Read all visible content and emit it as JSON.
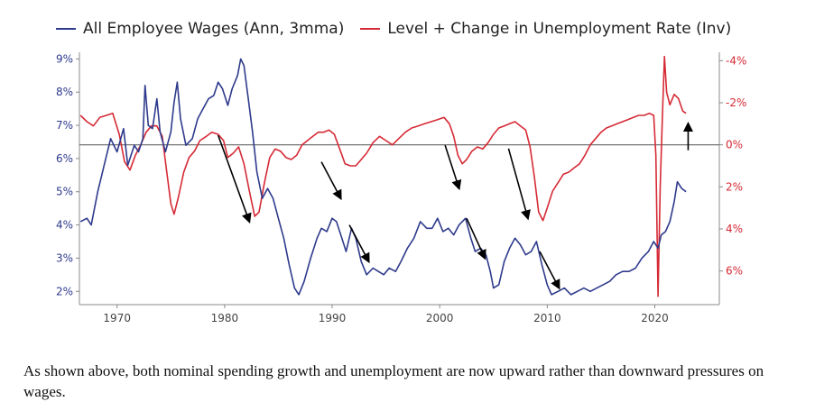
{
  "colors": {
    "wages": "#2e3a8c",
    "unemployment": "#d62a35",
    "axis": "#888888",
    "zero_line": "#666666",
    "arrow": "#000000"
  },
  "caption": "As shown above, both nominal spending growth and unemployment are now upward rather than downward pressures on wages.",
  "chart_data": {
    "type": "line",
    "x_ticks": [
      "1970",
      "1980",
      "1990",
      "2000",
      "2010",
      "2020"
    ],
    "xlim": [
      1966.5,
      2026
    ],
    "y_left": {
      "ticks": [
        "2%",
        "3%",
        "4%",
        "5%",
        "6%",
        "7%",
        "8%",
        "9%"
      ],
      "lim": [
        1.6,
        9.2
      ]
    },
    "y_right": {
      "ticks": [
        "-4%",
        "-2%",
        "0%",
        "2%",
        "4%",
        "6%"
      ],
      "values": [
        -4,
        -2,
        0,
        2,
        4,
        6
      ],
      "lim": [
        7.6,
        -4.4
      ],
      "inverted": true
    },
    "zero_line": 0,
    "series": [
      {
        "name": "All Employee Wages (Ann, 3mma)",
        "axis": "left",
        "points": [
          [
            1966.6,
            4.1
          ],
          [
            1967.2,
            4.2
          ],
          [
            1967.6,
            4.0
          ],
          [
            1968.2,
            5.0
          ],
          [
            1968.8,
            5.8
          ],
          [
            1969.4,
            6.6
          ],
          [
            1970.0,
            6.2
          ],
          [
            1970.6,
            6.9
          ],
          [
            1971.0,
            5.8
          ],
          [
            1971.6,
            6.4
          ],
          [
            1972.0,
            6.2
          ],
          [
            1972.4,
            6.6
          ],
          [
            1972.6,
            8.2
          ],
          [
            1972.9,
            7.0
          ],
          [
            1973.3,
            6.9
          ],
          [
            1973.7,
            7.8
          ],
          [
            1974.0,
            6.8
          ],
          [
            1974.5,
            6.2
          ],
          [
            1975.0,
            6.8
          ],
          [
            1975.3,
            7.7
          ],
          [
            1975.6,
            8.3
          ],
          [
            1975.9,
            7.2
          ],
          [
            1976.4,
            6.4
          ],
          [
            1977.0,
            6.6
          ],
          [
            1977.5,
            7.2
          ],
          [
            1978.0,
            7.5
          ],
          [
            1978.5,
            7.8
          ],
          [
            1979.0,
            7.9
          ],
          [
            1979.4,
            8.3
          ],
          [
            1979.8,
            8.1
          ],
          [
            1980.3,
            7.6
          ],
          [
            1980.7,
            8.1
          ],
          [
            1981.2,
            8.5
          ],
          [
            1981.5,
            9.0
          ],
          [
            1981.8,
            8.8
          ],
          [
            1982.2,
            7.8
          ],
          [
            1982.6,
            6.8
          ],
          [
            1983.0,
            5.6
          ],
          [
            1983.5,
            4.8
          ],
          [
            1984.0,
            5.1
          ],
          [
            1984.5,
            4.8
          ],
          [
            1985.0,
            4.2
          ],
          [
            1985.5,
            3.6
          ],
          [
            1986.0,
            2.8
          ],
          [
            1986.5,
            2.1
          ],
          [
            1986.9,
            1.9
          ],
          [
            1987.4,
            2.3
          ],
          [
            1988.0,
            3.0
          ],
          [
            1988.6,
            3.6
          ],
          [
            1989.0,
            3.9
          ],
          [
            1989.5,
            3.8
          ],
          [
            1990.0,
            4.2
          ],
          [
            1990.4,
            4.1
          ],
          [
            1990.8,
            3.7
          ],
          [
            1991.3,
            3.2
          ],
          [
            1991.8,
            3.9
          ],
          [
            1992.2,
            3.6
          ],
          [
            1992.7,
            2.9
          ],
          [
            1993.2,
            2.5
          ],
          [
            1993.8,
            2.7
          ],
          [
            1994.3,
            2.6
          ],
          [
            1994.8,
            2.5
          ],
          [
            1995.3,
            2.7
          ],
          [
            1995.9,
            2.6
          ],
          [
            1996.4,
            2.9
          ],
          [
            1997.0,
            3.3
          ],
          [
            1997.6,
            3.6
          ],
          [
            1998.2,
            4.1
          ],
          [
            1998.8,
            3.9
          ],
          [
            1999.3,
            3.9
          ],
          [
            1999.8,
            4.2
          ],
          [
            2000.3,
            3.8
          ],
          [
            2000.8,
            3.9
          ],
          [
            2001.3,
            3.7
          ],
          [
            2001.8,
            4.0
          ],
          [
            2002.4,
            4.2
          ],
          [
            2002.9,
            3.6
          ],
          [
            2003.3,
            3.2
          ],
          [
            2003.8,
            3.3
          ],
          [
            2004.3,
            3.1
          ],
          [
            2004.7,
            2.6
          ],
          [
            2005.0,
            2.1
          ],
          [
            2005.5,
            2.2
          ],
          [
            2006.0,
            2.9
          ],
          [
            2006.5,
            3.3
          ],
          [
            2007.0,
            3.6
          ],
          [
            2007.5,
            3.4
          ],
          [
            2008.0,
            3.1
          ],
          [
            2008.5,
            3.2
          ],
          [
            2009.0,
            3.5
          ],
          [
            2009.5,
            2.8
          ],
          [
            2010.0,
            2.2
          ],
          [
            2010.4,
            1.9
          ],
          [
            2011.0,
            2.0
          ],
          [
            2011.6,
            2.1
          ],
          [
            2012.2,
            1.9
          ],
          [
            2012.8,
            2.0
          ],
          [
            2013.4,
            2.1
          ],
          [
            2014.0,
            2.0
          ],
          [
            2014.6,
            2.1
          ],
          [
            2015.2,
            2.2
          ],
          [
            2015.8,
            2.3
          ],
          [
            2016.4,
            2.5
          ],
          [
            2017.0,
            2.6
          ],
          [
            2017.6,
            2.6
          ],
          [
            2018.2,
            2.7
          ],
          [
            2018.8,
            3.0
          ],
          [
            2019.4,
            3.2
          ],
          [
            2019.9,
            3.5
          ],
          [
            2020.3,
            3.3
          ],
          [
            2020.6,
            3.7
          ],
          [
            2021.0,
            3.8
          ],
          [
            2021.4,
            4.1
          ],
          [
            2021.8,
            4.7
          ],
          [
            2022.1,
            5.3
          ],
          [
            2022.5,
            5.1
          ],
          [
            2022.9,
            5.0
          ]
        ]
      },
      {
        "name": "Level + Change in Unemployment Rate (Inv)",
        "axis": "right",
        "points": [
          [
            1966.6,
            -1.4
          ],
          [
            1967.2,
            -1.1
          ],
          [
            1967.8,
            -0.9
          ],
          [
            1968.4,
            -1.3
          ],
          [
            1969.0,
            -1.4
          ],
          [
            1969.6,
            -1.5
          ],
          [
            1970.2,
            -0.5
          ],
          [
            1970.7,
            0.8
          ],
          [
            1971.2,
            1.2
          ],
          [
            1971.7,
            0.5
          ],
          [
            1972.2,
            0.0
          ],
          [
            1972.7,
            -0.6
          ],
          [
            1973.2,
            -0.9
          ],
          [
            1973.7,
            -0.9
          ],
          [
            1974.2,
            -0.4
          ],
          [
            1974.6,
            1.2
          ],
          [
            1975.0,
            2.8
          ],
          [
            1975.3,
            3.3
          ],
          [
            1975.7,
            2.5
          ],
          [
            1976.2,
            1.3
          ],
          [
            1976.7,
            0.6
          ],
          [
            1977.2,
            0.3
          ],
          [
            1977.7,
            -0.2
          ],
          [
            1978.3,
            -0.4
          ],
          [
            1978.8,
            -0.6
          ],
          [
            1979.4,
            -0.5
          ],
          [
            1979.9,
            -0.2
          ],
          [
            1980.3,
            0.6
          ],
          [
            1980.8,
            0.4
          ],
          [
            1981.3,
            0.1
          ],
          [
            1981.8,
            0.9
          ],
          [
            1982.3,
            2.2
          ],
          [
            1982.8,
            3.4
          ],
          [
            1983.2,
            3.2
          ],
          [
            1983.7,
            1.8
          ],
          [
            1984.2,
            0.6
          ],
          [
            1984.7,
            0.2
          ],
          [
            1985.2,
            0.3
          ],
          [
            1985.7,
            0.6
          ],
          [
            1986.2,
            0.7
          ],
          [
            1986.7,
            0.5
          ],
          [
            1987.2,
            0.0
          ],
          [
            1987.7,
            -0.2
          ],
          [
            1988.2,
            -0.4
          ],
          [
            1988.7,
            -0.6
          ],
          [
            1989.2,
            -0.6
          ],
          [
            1989.7,
            -0.7
          ],
          [
            1990.2,
            -0.5
          ],
          [
            1990.7,
            0.2
          ],
          [
            1991.2,
            0.9
          ],
          [
            1991.7,
            1.0
          ],
          [
            1992.2,
            1.0
          ],
          [
            1992.7,
            0.7
          ],
          [
            1993.2,
            0.4
          ],
          [
            1993.8,
            -0.1
          ],
          [
            1994.4,
            -0.4
          ],
          [
            1995.0,
            -0.2
          ],
          [
            1995.6,
            0.0
          ],
          [
            1996.2,
            -0.3
          ],
          [
            1996.8,
            -0.6
          ],
          [
            1997.4,
            -0.8
          ],
          [
            1998.0,
            -0.9
          ],
          [
            1998.6,
            -1.0
          ],
          [
            1999.2,
            -1.1
          ],
          [
            1999.8,
            -1.2
          ],
          [
            2000.4,
            -1.3
          ],
          [
            2000.9,
            -1.0
          ],
          [
            2001.3,
            -0.4
          ],
          [
            2001.7,
            0.5
          ],
          [
            2002.1,
            0.9
          ],
          [
            2002.5,
            0.7
          ],
          [
            2003.0,
            0.3
          ],
          [
            2003.5,
            0.1
          ],
          [
            2004.0,
            0.2
          ],
          [
            2004.5,
            -0.1
          ],
          [
            2005.0,
            -0.5
          ],
          [
            2005.5,
            -0.8
          ],
          [
            2006.0,
            -0.9
          ],
          [
            2006.5,
            -1.0
          ],
          [
            2007.0,
            -1.1
          ],
          [
            2007.5,
            -0.9
          ],
          [
            2008.0,
            -0.7
          ],
          [
            2008.4,
            0.1
          ],
          [
            2008.8,
            1.5
          ],
          [
            2009.2,
            3.2
          ],
          [
            2009.6,
            3.6
          ],
          [
            2010.0,
            3.0
          ],
          [
            2010.5,
            2.2
          ],
          [
            2011.0,
            1.8
          ],
          [
            2011.5,
            1.4
          ],
          [
            2012.0,
            1.3
          ],
          [
            2012.5,
            1.1
          ],
          [
            2013.0,
            0.9
          ],
          [
            2013.5,
            0.5
          ],
          [
            2014.0,
            0.0
          ],
          [
            2014.5,
            -0.3
          ],
          [
            2015.0,
            -0.6
          ],
          [
            2015.5,
            -0.8
          ],
          [
            2016.0,
            -0.9
          ],
          [
            2016.5,
            -1.0
          ],
          [
            2017.0,
            -1.1
          ],
          [
            2017.5,
            -1.2
          ],
          [
            2018.0,
            -1.3
          ],
          [
            2018.5,
            -1.4
          ],
          [
            2019.0,
            -1.4
          ],
          [
            2019.5,
            -1.5
          ],
          [
            2019.9,
            -1.4
          ],
          [
            2020.1,
            0.5
          ],
          [
            2020.3,
            7.2
          ],
          [
            2020.5,
            2.0
          ],
          [
            2020.7,
            -1.2
          ],
          [
            2020.9,
            -4.2
          ],
          [
            2021.1,
            -2.5
          ],
          [
            2021.4,
            -1.9
          ],
          [
            2021.8,
            -2.4
          ],
          [
            2022.2,
            -2.2
          ],
          [
            2022.6,
            -1.6
          ],
          [
            2022.9,
            -1.5
          ]
        ]
      }
    ],
    "annotations": [
      {
        "type": "arrow",
        "from": [
          1979.4,
          6.7
        ],
        "to": [
          1982.3,
          4.1
        ]
      },
      {
        "type": "arrow",
        "from": [
          1989.0,
          5.9
        ],
        "to": [
          1990.8,
          4.8
        ]
      },
      {
        "type": "arrow",
        "from": [
          1991.6,
          4.0
        ],
        "to": [
          1993.4,
          2.9
        ]
      },
      {
        "type": "arrow",
        "from": [
          2000.5,
          6.4
        ],
        "to": [
          2001.8,
          5.1
        ]
      },
      {
        "type": "arrow",
        "from": [
          2002.5,
          4.2
        ],
        "to": [
          2004.2,
          3.0
        ]
      },
      {
        "type": "arrow",
        "from": [
          2006.4,
          6.3
        ],
        "to": [
          2008.2,
          4.2
        ]
      },
      {
        "type": "arrow",
        "from": [
          2009.3,
          3.2
        ],
        "to": [
          2011.1,
          2.1
        ]
      },
      {
        "type": "arrow",
        "from": [
          2023.1,
          6.25
        ],
        "to": [
          2023.1,
          7.05
        ]
      }
    ]
  }
}
